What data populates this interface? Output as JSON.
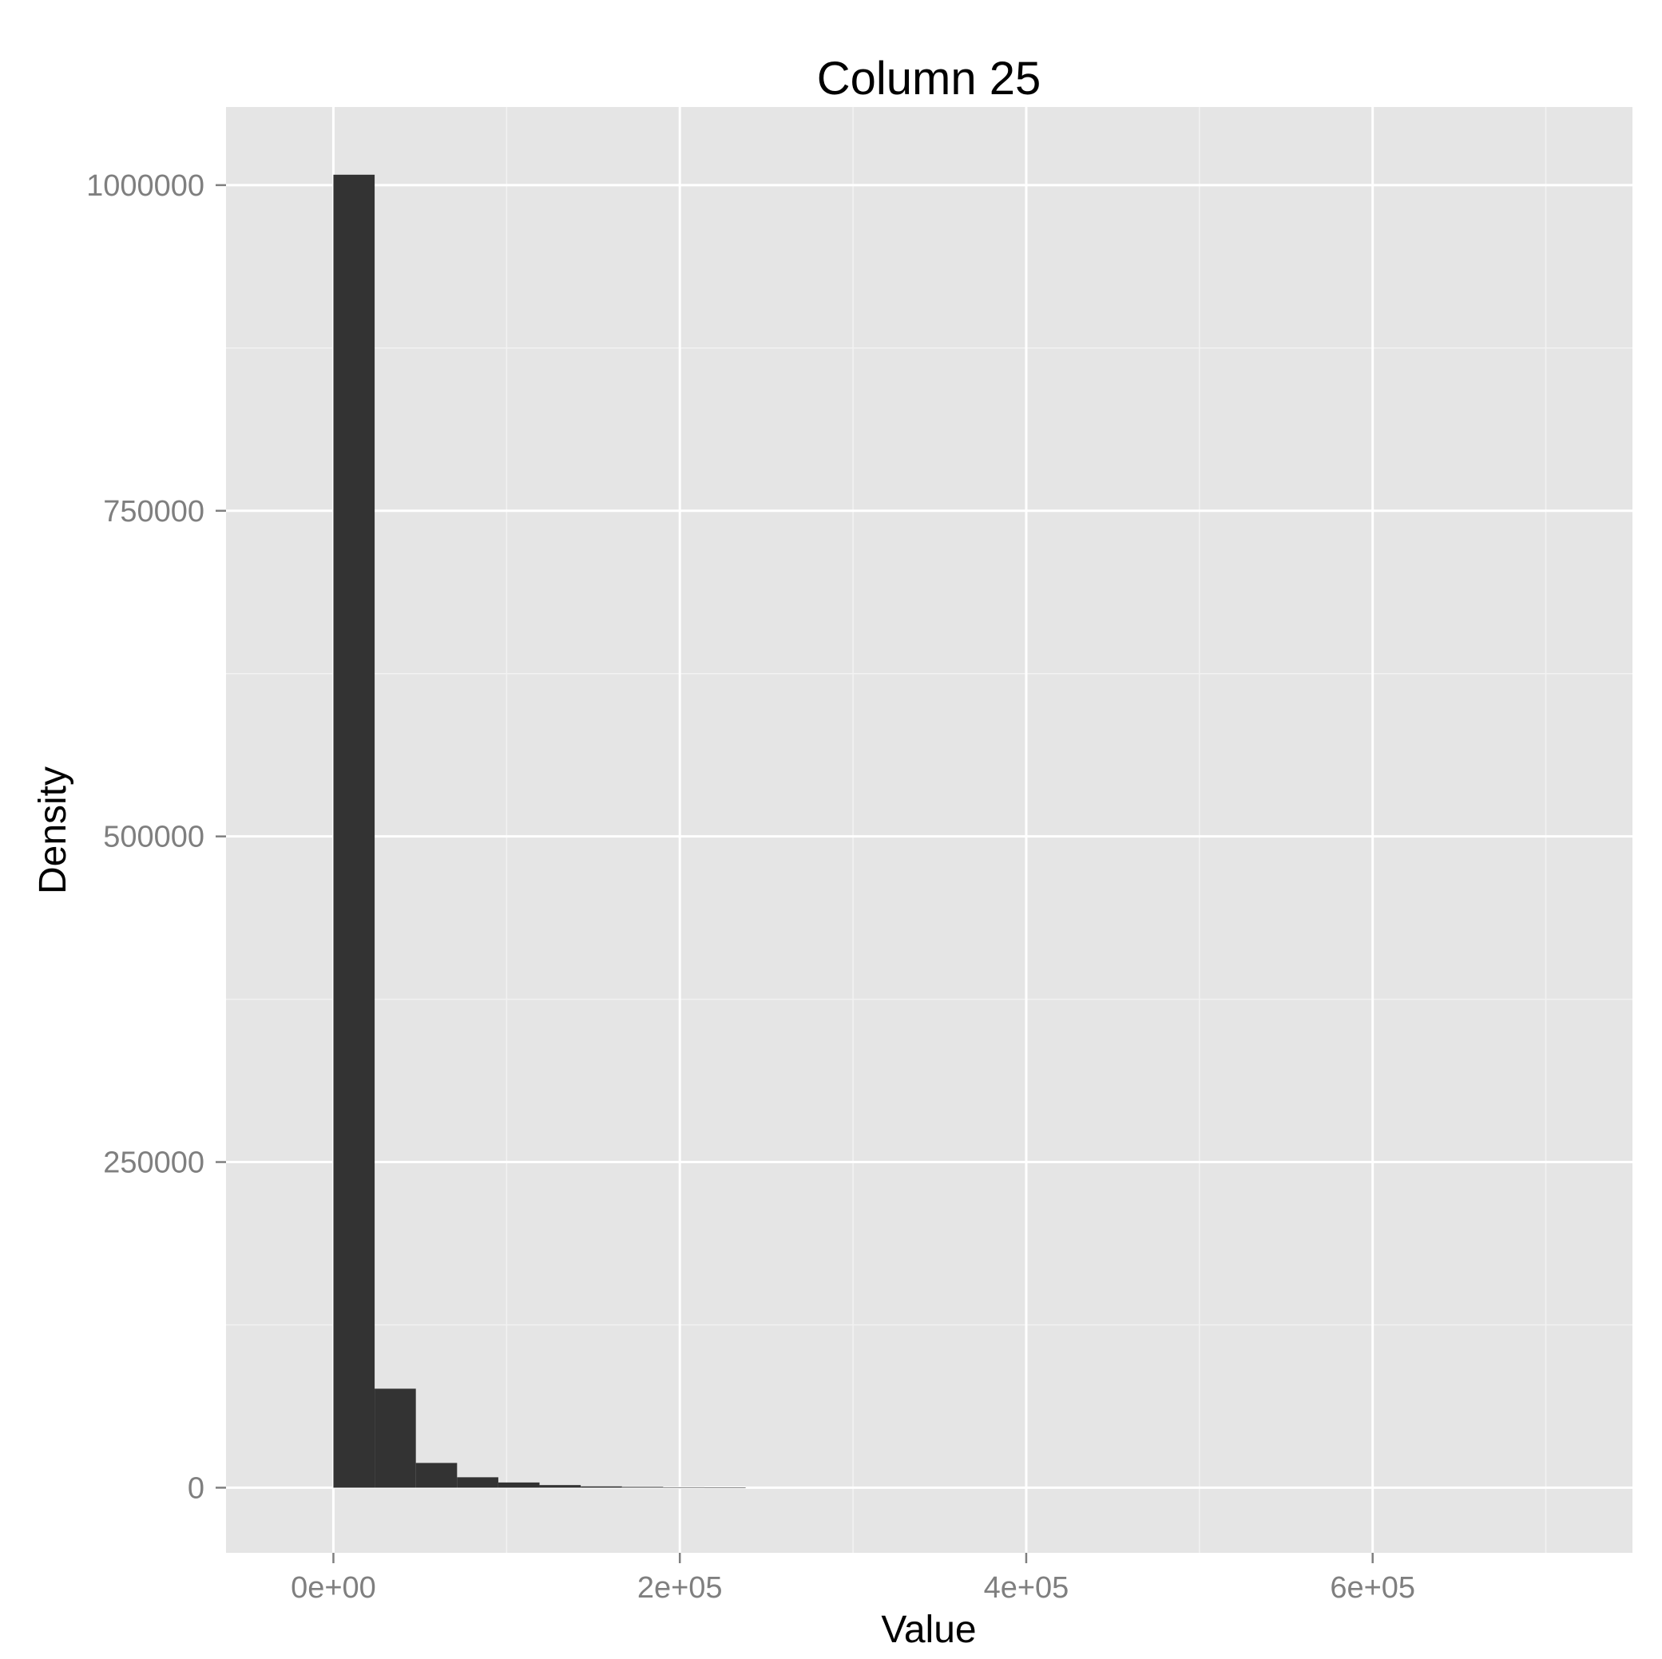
{
  "chart_data": {
    "type": "bar",
    "title": "Column 25",
    "xlabel": "Value",
    "ylabel": "Density",
    "xlim": [
      -62000,
      750000
    ],
    "ylim": [
      -50000,
      1060000
    ],
    "x_ticks": [
      {
        "value": 0,
        "label": "0e+00"
      },
      {
        "value": 200000,
        "label": "2e+05"
      },
      {
        "value": 400000,
        "label": "4e+05"
      },
      {
        "value": 600000,
        "label": "6e+05"
      }
    ],
    "x_minor": [
      100000,
      300000,
      500000,
      700000
    ],
    "y_ticks": [
      {
        "value": 0,
        "label": "0"
      },
      {
        "value": 250000,
        "label": "250000"
      },
      {
        "value": 500000,
        "label": "500000"
      },
      {
        "value": 750000,
        "label": "750000"
      },
      {
        "value": 1000000,
        "label": "1000000"
      }
    ],
    "y_minor": [
      125000,
      375000,
      625000,
      875000
    ],
    "bin_width": 23800,
    "bins": [
      {
        "x0": 0,
        "value": 1008000
      },
      {
        "x0": 23800,
        "value": 76000
      },
      {
        "x0": 47600,
        "value": 19000
      },
      {
        "x0": 71400,
        "value": 8000
      },
      {
        "x0": 95200,
        "value": 4000
      },
      {
        "x0": 119000,
        "value": 2000
      },
      {
        "x0": 142800,
        "value": 1000
      },
      {
        "x0": 166600,
        "value": 600
      },
      {
        "x0": 190400,
        "value": 300
      },
      {
        "x0": 214200,
        "value": 200
      }
    ],
    "grid": true,
    "legend": "none",
    "colors": {
      "panel": "#e5e5e5",
      "grid_major": "#ffffff",
      "grid_minor": "#f2f2f2",
      "bar": "#333333",
      "tick": "#7f7f7f"
    }
  }
}
